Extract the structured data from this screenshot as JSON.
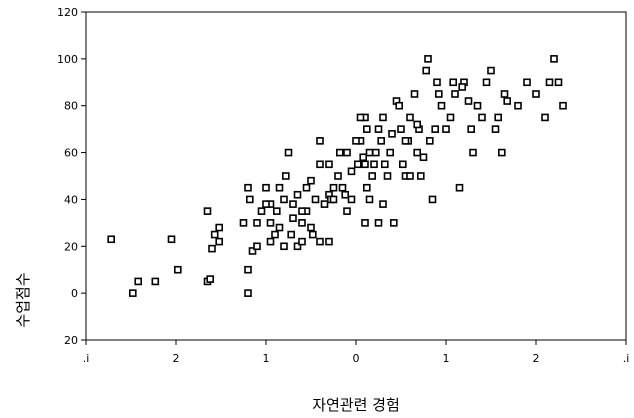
{
  "chart_data": {
    "type": "scatter",
    "title": "",
    "xlabel": "자연관련 경험",
    "ylabel": "수업점수",
    "xlim": [
      -3,
      3
    ],
    "ylim": [
      -20,
      120
    ],
    "x_ticks": [
      -3,
      -2,
      -1,
      0,
      1,
      2,
      3
    ],
    "x_tick_labels": [
      ".i",
      "2",
      "1",
      "0",
      "1",
      "2",
      ".i"
    ],
    "y_ticks": [
      -20,
      0,
      20,
      40,
      60,
      80,
      100,
      120
    ],
    "y_tick_labels": [
      "20",
      "0",
      "20",
      "40",
      "60",
      "80",
      "100",
      "120"
    ],
    "grid": false,
    "legend": "none",
    "marker_color": "#000000",
    "points": [
      [
        -2.72,
        23
      ],
      [
        -2.48,
        0
      ],
      [
        -2.42,
        5
      ],
      [
        -2.23,
        5
      ],
      [
        -2.05,
        23
      ],
      [
        -1.98,
        10
      ],
      [
        -1.65,
        35
      ],
      [
        -1.6,
        19
      ],
      [
        -1.57,
        25
      ],
      [
        -1.52,
        28
      ],
      [
        -1.65,
        5
      ],
      [
        -1.62,
        6
      ],
      [
        -1.52,
        22
      ],
      [
        -1.25,
        30
      ],
      [
        -1.2,
        10
      ],
      [
        -1.2,
        0
      ],
      [
        -1.18,
        40
      ],
      [
        -1.2,
        45
      ],
      [
        -1.1,
        30
      ],
      [
        -1.05,
        35
      ],
      [
        -1.0,
        45
      ],
      [
        -0.95,
        38
      ],
      [
        -0.95,
        30
      ],
      [
        -1.15,
        18
      ],
      [
        -1.1,
        20
      ],
      [
        -0.95,
        22
      ],
      [
        -0.9,
        25
      ],
      [
        -0.85,
        28
      ],
      [
        -0.8,
        20
      ],
      [
        -0.7,
        32
      ],
      [
        -0.65,
        20
      ],
      [
        -0.6,
        22
      ],
      [
        -0.55,
        35
      ],
      [
        -0.5,
        28
      ],
      [
        -0.48,
        25
      ],
      [
        -0.85,
        45
      ],
      [
        -0.8,
        40
      ],
      [
        -0.78,
        50
      ],
      [
        -0.75,
        60
      ],
      [
        -0.7,
        38
      ],
      [
        -0.65,
        42
      ],
      [
        -0.6,
        35
      ],
      [
        -0.55,
        45
      ],
      [
        -0.5,
        48
      ],
      [
        -0.45,
        40
      ],
      [
        -0.4,
        55
      ],
      [
        -0.35,
        38
      ],
      [
        -0.3,
        42
      ],
      [
        -0.25,
        45
      ],
      [
        -0.2,
        50
      ],
      [
        -0.18,
        60
      ],
      [
        -0.12,
        42
      ],
      [
        -0.1,
        35
      ],
      [
        -0.05,
        52
      ],
      [
        -0.4,
        22
      ],
      [
        -0.3,
        22
      ],
      [
        -0.15,
        45
      ],
      [
        -0.4,
        65
      ],
      [
        -0.28,
        40
      ],
      [
        -0.25,
        40
      ],
      [
        0.02,
        55
      ],
      [
        0.05,
        65
      ],
      [
        0.08,
        58
      ],
      [
        0.1,
        55
      ],
      [
        0.12,
        45
      ],
      [
        0.15,
        40
      ],
      [
        0.18,
        50
      ],
      [
        0.2,
        55
      ],
      [
        0.22,
        60
      ],
      [
        0.25,
        70
      ],
      [
        0.28,
        65
      ],
      [
        0.3,
        75
      ],
      [
        0.32,
        55
      ],
      [
        0.35,
        50
      ],
      [
        0.38,
        60
      ],
      [
        0.4,
        68
      ],
      [
        0.45,
        82
      ],
      [
        0.48,
        80
      ],
      [
        0.5,
        70
      ],
      [
        0.52,
        55
      ],
      [
        0.55,
        50
      ],
      [
        0.58,
        65
      ],
      [
        0.6,
        75
      ],
      [
        0.65,
        85
      ],
      [
        0.68,
        60
      ],
      [
        0.7,
        70
      ],
      [
        0.72,
        50
      ],
      [
        0.75,
        58
      ],
      [
        0.78,
        95
      ],
      [
        0.8,
        100
      ],
      [
        0.82,
        65
      ],
      [
        0.85,
        40
      ],
      [
        0.9,
        90
      ],
      [
        0.92,
        85
      ],
      [
        0.95,
        80
      ],
      [
        1.0,
        70
      ],
      [
        1.05,
        75
      ],
      [
        1.1,
        85
      ],
      [
        1.15,
        45
      ],
      [
        1.2,
        90
      ],
      [
        1.25,
        82
      ],
      [
        1.28,
        70
      ],
      [
        1.3,
        60
      ],
      [
        1.35,
        80
      ],
      [
        1.45,
        90
      ],
      [
        1.5,
        95
      ],
      [
        1.55,
        70
      ],
      [
        1.58,
        75
      ],
      [
        1.62,
        60
      ],
      [
        1.65,
        85
      ],
      [
        1.68,
        82
      ],
      [
        1.8,
        80
      ],
      [
        1.9,
        90
      ],
      [
        2.0,
        85
      ],
      [
        2.1,
        75
      ],
      [
        2.15,
        90
      ],
      [
        2.2,
        100
      ],
      [
        2.25,
        90
      ],
      [
        2.3,
        80
      ],
      [
        0.1,
        75
      ],
      [
        0.12,
        70
      ],
      [
        0.15,
        60
      ],
      [
        -0.1,
        60
      ],
      [
        -0.05,
        40
      ],
      [
        0.3,
        38
      ],
      [
        0.42,
        30
      ],
      [
        0.6,
        50
      ],
      [
        0.0,
        65
      ],
      [
        0.1,
        30
      ],
      [
        0.25,
        30
      ],
      [
        -0.6,
        30
      ],
      [
        -0.3,
        55
      ],
      [
        0.55,
        65
      ],
      [
        0.68,
        72
      ],
      [
        0.88,
        70
      ],
      [
        1.08,
        90
      ],
      [
        1.18,
        88
      ],
      [
        1.4,
        75
      ],
      [
        -1.0,
        38
      ],
      [
        -0.88,
        35
      ],
      [
        -0.72,
        25
      ],
      [
        0.05,
        75
      ]
    ]
  }
}
